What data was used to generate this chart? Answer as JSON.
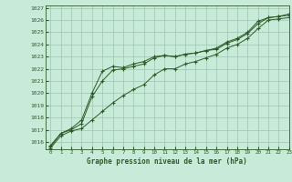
{
  "title": "Graphe pression niveau de la mer (hPa)",
  "background_color": "#c8ead8",
  "grid_color": "#9dc4b0",
  "line_color": "#2d5a27",
  "xlim": [
    -0.5,
    23
  ],
  "ylim": [
    1015.4,
    1027.2
  ],
  "yticks": [
    1016,
    1017,
    1018,
    1019,
    1020,
    1021,
    1022,
    1023,
    1024,
    1025,
    1026,
    1027
  ],
  "xticks": [
    0,
    1,
    2,
    3,
    4,
    5,
    6,
    7,
    8,
    9,
    10,
    11,
    12,
    13,
    14,
    15,
    16,
    17,
    18,
    19,
    20,
    21,
    22,
    23
  ],
  "series": [
    {
      "x": [
        0,
        1,
        2,
        3,
        4,
        5,
        6,
        7,
        8,
        9,
        10,
        11,
        12,
        13,
        14,
        15,
        16,
        17,
        18,
        19,
        20,
        21,
        22,
        23
      ],
      "y": [
        1015.7,
        1016.7,
        1017.1,
        1017.8,
        1020.0,
        1021.8,
        1022.2,
        1022.1,
        1022.4,
        1022.6,
        1023.0,
        1023.1,
        1023.0,
        1023.2,
        1023.3,
        1023.5,
        1023.7,
        1024.2,
        1024.5,
        1025.0,
        1025.9,
        1026.2,
        1026.3,
        1026.5
      ]
    },
    {
      "x": [
        0,
        1,
        2,
        3,
        4,
        5,
        6,
        7,
        8,
        9,
        10,
        11,
        12,
        13,
        14,
        15,
        16,
        17,
        18,
        19,
        20,
        21,
        22,
        23
      ],
      "y": [
        1015.6,
        1016.7,
        1017.0,
        1017.5,
        1019.7,
        1021.0,
        1021.9,
        1022.0,
        1022.2,
        1022.4,
        1022.9,
        1023.1,
        1023.0,
        1023.2,
        1023.3,
        1023.5,
        1023.6,
        1024.1,
        1024.4,
        1024.9,
        1025.7,
        1026.2,
        1026.3,
        1026.4
      ]
    },
    {
      "x": [
        0,
        1,
        2,
        3,
        4,
        5,
        6,
        7,
        8,
        9,
        10,
        11,
        12,
        13,
        14,
        15,
        16,
        17,
        18,
        19,
        20,
        21,
        22,
        23
      ],
      "y": [
        1015.5,
        1016.5,
        1016.9,
        1017.1,
        1017.8,
        1018.5,
        1019.2,
        1019.8,
        1020.3,
        1020.7,
        1021.5,
        1022.0,
        1022.0,
        1022.4,
        1022.6,
        1022.9,
        1023.2,
        1023.7,
        1024.0,
        1024.5,
        1025.3,
        1026.0,
        1026.1,
        1026.2
      ]
    }
  ]
}
